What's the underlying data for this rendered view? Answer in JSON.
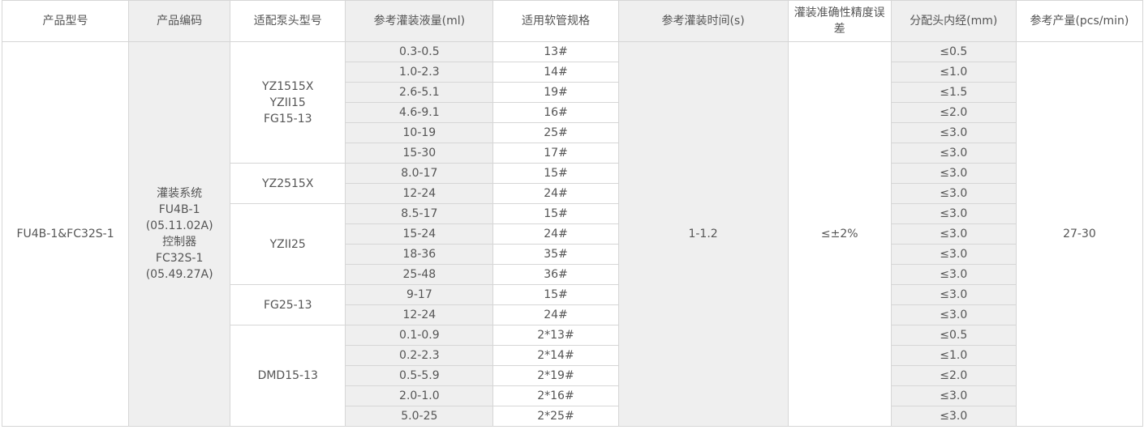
{
  "headers": [
    "产品型号",
    "产品编码",
    "适配泵头型号",
    "参考灌装液量(ml)",
    "适用软管规格",
    "参考灌装时间(s)",
    "灌装准确性精度误差",
    "分配头内经(mm)",
    "参考产量(pcs/min)"
  ],
  "product_model": "FU4B-1&FC32S-1",
  "product_code": [
    "灌装系统",
    "FU4B-1",
    "(05.11.02A)",
    "控制器",
    "FC32S-1",
    "(05.49.27A)"
  ],
  "fill_time": "1-1.2",
  "accuracy": "≤±2%",
  "output": "27-30",
  "pump_groups": [
    {
      "model": [
        "YZ1515X",
        "YZII15",
        "FG15-13"
      ],
      "rows": [
        {
          "volume": "0.3-0.5",
          "tube": "13#",
          "nozzle": "≤0.5"
        },
        {
          "volume": "1.0-2.3",
          "tube": "14#",
          "nozzle": "≤1.0"
        },
        {
          "volume": "2.6-5.1",
          "tube": "19#",
          "nozzle": "≤1.5"
        },
        {
          "volume": "4.6-9.1",
          "tube": "16#",
          "nozzle": "≤2.0"
        },
        {
          "volume": "10-19",
          "tube": "25#",
          "nozzle": "≤3.0"
        },
        {
          "volume": "15-30",
          "tube": "17#",
          "nozzle": "≤3.0"
        }
      ]
    },
    {
      "model": [
        "YZ2515X"
      ],
      "rows": [
        {
          "volume": "8.0-17",
          "tube": "15#",
          "nozzle": "≤3.0"
        },
        {
          "volume": "12-24",
          "tube": "24#",
          "nozzle": "≤3.0"
        }
      ]
    },
    {
      "model": [
        "YZII25"
      ],
      "rows": [
        {
          "volume": "8.5-17",
          "tube": "15#",
          "nozzle": "≤3.0"
        },
        {
          "volume": "15-24",
          "tube": "24#",
          "nozzle": "≤3.0"
        },
        {
          "volume": "18-36",
          "tube": "35#",
          "nozzle": "≤3.0"
        },
        {
          "volume": "25-48",
          "tube": "36#",
          "nozzle": "≤3.0"
        }
      ]
    },
    {
      "model": [
        "FG25-13"
      ],
      "rows": [
        {
          "volume": "9-17",
          "tube": "15#",
          "nozzle": "≤3.0"
        },
        {
          "volume": "12-24",
          "tube": "24#",
          "nozzle": "≤3.0"
        }
      ]
    },
    {
      "model": [
        "DMD15-13"
      ],
      "rows": [
        {
          "volume": "0.1-0.9",
          "tube": "2*13#",
          "nozzle": "≤0.5"
        },
        {
          "volume": "0.2-2.3",
          "tube": "2*14#",
          "nozzle": "≤1.0"
        },
        {
          "volume": "0.5-5.9",
          "tube": "2*19#",
          "nozzle": "≤2.0"
        },
        {
          "volume": "2.0-1.0",
          "tube": "2*16#",
          "nozzle": "≤3.0"
        },
        {
          "volume": "5.0-25",
          "tube": "2*25#",
          "nozzle": "≤3.0"
        }
      ]
    }
  ]
}
